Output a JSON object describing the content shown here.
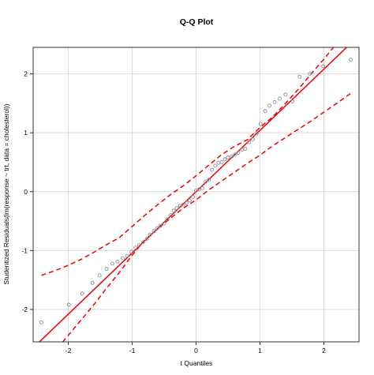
{
  "chart_data": {
    "type": "scatter",
    "title": "Q-Q Plot",
    "xlabel": "t Quantiles",
    "ylabel": "Studentized Residuals(lm(response ~ trt, data = cholesterol))",
    "xlim": [
      -2.55,
      2.55
    ],
    "ylim": [
      -2.55,
      2.45
    ],
    "x_ticks": [
      -2,
      -1,
      0,
      1,
      2
    ],
    "x_tick_labels": [
      "-2",
      "-1",
      "0",
      "1",
      "2"
    ],
    "y_ticks": [
      -2,
      -1,
      0,
      1,
      2
    ],
    "y_tick_labels": [
      "-2",
      "-1",
      "0",
      "1",
      "2"
    ],
    "grid": true,
    "colors": {
      "points": "#8a8fa0",
      "reference_line": "#ee0000",
      "envelope": "#ee0000",
      "grid": "#d9d9d9"
    },
    "points": {
      "x": [
        -2.42,
        -1.99,
        -1.78,
        -1.62,
        -1.51,
        -1.4,
        -1.31,
        -1.23,
        -1.15,
        -1.08,
        -1.01,
        -0.95,
        -0.89,
        -0.83,
        -0.77,
        -0.72,
        -0.66,
        -0.61,
        -0.56,
        -0.5,
        -0.45,
        -0.4,
        -0.35,
        -0.3,
        -0.25,
        -0.2,
        -0.15,
        -0.1,
        -0.05,
        0.0,
        0.05,
        0.1,
        0.15,
        0.2,
        0.25,
        0.3,
        0.35,
        0.4,
        0.45,
        0.5,
        0.56,
        0.61,
        0.66,
        0.72,
        0.77,
        0.83,
        0.89,
        0.95,
        1.01,
        1.08,
        1.15,
        1.23,
        1.31,
        1.4,
        1.51,
        1.62,
        1.78,
        1.99,
        2.42
      ],
      "y": [
        -2.22,
        -1.92,
        -1.73,
        -1.55,
        -1.42,
        -1.31,
        -1.22,
        -1.19,
        -1.13,
        -1.09,
        -1.02,
        -0.95,
        -0.91,
        -0.86,
        -0.8,
        -0.73,
        -0.67,
        -0.62,
        -0.58,
        -0.54,
        -0.47,
        -0.4,
        -0.32,
        -0.28,
        -0.24,
        -0.22,
        -0.19,
        -0.15,
        -0.09,
        0.02,
        0.04,
        0.06,
        0.17,
        0.2,
        0.37,
        0.44,
        0.49,
        0.5,
        0.55,
        0.58,
        0.6,
        0.63,
        0.66,
        0.71,
        0.73,
        0.84,
        0.89,
        0.99,
        1.15,
        1.37,
        1.46,
        1.52,
        1.58,
        1.65,
        1.53,
        1.95,
        2.0,
        2.13,
        2.24
      ]
    },
    "reference_line": {
      "intercept": 0.0,
      "slope": 1.04
    },
    "envelope": {
      "x": [
        -2.42,
        -2.2,
        -2.0,
        -1.8,
        -1.6,
        -1.4,
        -1.2,
        -1.0,
        -0.8,
        -0.6,
        -0.4,
        -0.2,
        0.0,
        0.2,
        0.4,
        0.6,
        0.8,
        1.0,
        1.2,
        1.4,
        1.6,
        1.8,
        2.0,
        2.2,
        2.42
      ],
      "upper": [
        -1.42,
        -1.34,
        -1.25,
        -1.15,
        -1.03,
        -0.9,
        -0.78,
        -0.59,
        -0.4,
        -0.22,
        -0.05,
        0.1,
        0.27,
        0.45,
        0.63,
        0.77,
        0.88,
        1.09,
        1.27,
        1.5,
        1.74,
        2.0,
        2.25,
        2.52,
        2.8
      ],
      "lower": [
        -2.95,
        -2.7,
        -2.44,
        -2.18,
        -1.92,
        -1.64,
        -1.37,
        -1.08,
        -0.82,
        -0.63,
        -0.45,
        -0.28,
        -0.14,
        0.03,
        0.18,
        0.33,
        0.48,
        0.62,
        0.78,
        0.92,
        1.06,
        1.2,
        1.35,
        1.5,
        1.67
      ]
    }
  }
}
